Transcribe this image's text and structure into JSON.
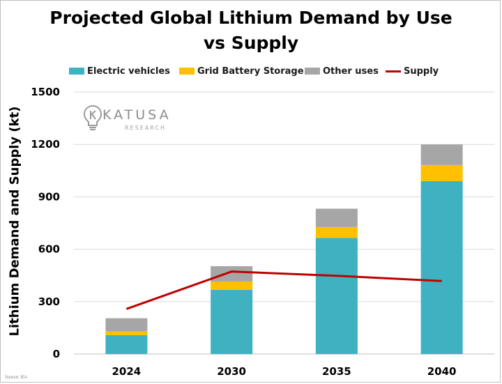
{
  "chart_data": {
    "type": "bar",
    "stacked": true,
    "title_line1": "Projected Global Lithium Demand by Use",
    "title_line2": "vs Supply",
    "ylabel": "Lithium Demand and Supply (kt)",
    "xlabel": "",
    "ylim": [
      0,
      1500
    ],
    "yticks": [
      "0",
      "300",
      "600",
      "900",
      "1200",
      "1500"
    ],
    "categories": [
      "2024",
      "2030",
      "2035",
      "2040"
    ],
    "series": [
      {
        "name": "Electric vehicles",
        "kind": "bar",
        "color": "#3fb2c1",
        "values": [
          108,
          368,
          665,
          990
        ]
      },
      {
        "name": "Grid Battery Storage",
        "kind": "bar",
        "color": "#ffc000",
        "values": [
          22,
          47,
          62,
          92
        ]
      },
      {
        "name": "Other uses",
        "kind": "bar",
        "color": "#a6a6a6",
        "values": [
          75,
          88,
          105,
          118
        ]
      },
      {
        "name": "Supply",
        "kind": "line",
        "color": "#c00000",
        "values": [
          258,
          472,
          448,
          418
        ]
      }
    ],
    "grid": true,
    "legend_position": "top"
  },
  "watermark": {
    "name": "KATUSA",
    "sub": "RESEARCH",
    "icon": "lightbulb-k-icon"
  },
  "source": "Source: IEA"
}
